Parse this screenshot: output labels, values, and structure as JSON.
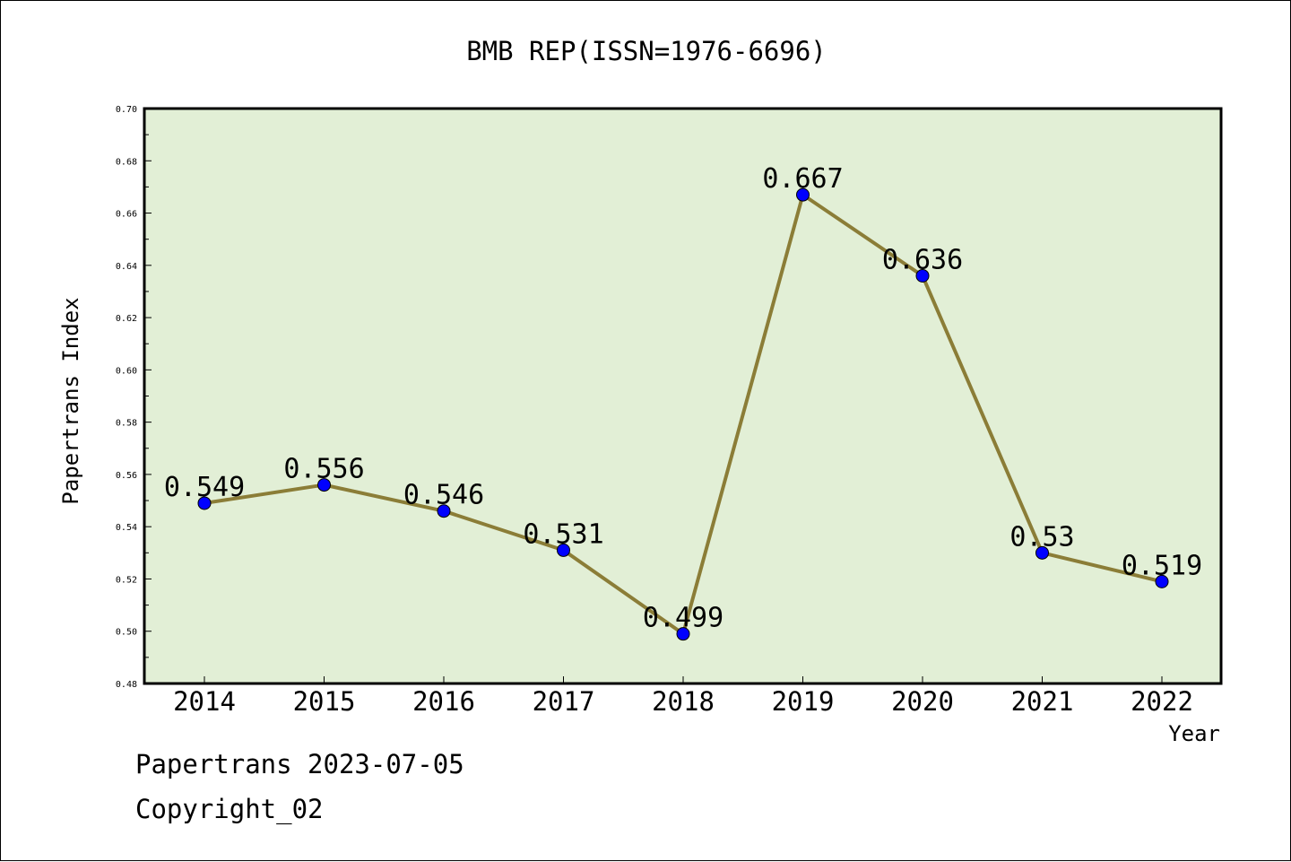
{
  "chart_data": {
    "type": "line",
    "title": "BMB REP(ISSN=1976-6696)",
    "xlabel": "Year",
    "ylabel": "Papertrans Index",
    "categories": [
      "2014",
      "2015",
      "2016",
      "2017",
      "2018",
      "2019",
      "2020",
      "2021",
      "2022"
    ],
    "values": [
      0.549,
      0.556,
      0.546,
      0.531,
      0.499,
      0.667,
      0.636,
      0.53,
      0.519
    ],
    "data_labels": [
      "0.549",
      "0.556",
      "0.546",
      "0.531",
      "0.499",
      "0.667",
      "0.636",
      "0.53",
      "0.519"
    ],
    "ylim": [
      0.48,
      0.7
    ],
    "yticks": [
      "0.48",
      "0.50",
      "0.52",
      "0.54",
      "0.56",
      "0.58",
      "0.60",
      "0.62",
      "0.64",
      "0.66",
      "0.68",
      "0.70"
    ],
    "grid": false,
    "legend": "none",
    "colors": {
      "plot_background": "#e2efd6",
      "line": "#8b7d37",
      "marker": "#0000ff",
      "frame": "#000000"
    }
  },
  "footer": {
    "line1": "Papertrans 2023-07-05",
    "line2": "Copyright_02"
  }
}
